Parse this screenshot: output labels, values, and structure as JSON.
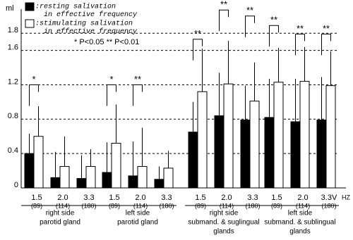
{
  "chart_data": {
    "type": "bar",
    "y_label": "ml",
    "ylim": [
      0,
      2.08
    ],
    "yticks": [
      0,
      0.4,
      0.8,
      1.2,
      1.6,
      1.8
    ],
    "grid": true,
    "categories": [
      "1.5",
      "2.0",
      "3.3",
      "1.5",
      "2.0",
      "3.3",
      "1.5",
      "2.0",
      "3.3",
      "1.5",
      "2.0",
      "3.3V"
    ],
    "category_sublabels": [
      "(89)",
      "(114)",
      "(180)",
      "(89)",
      "(114)",
      "(180)",
      "(89)",
      "(114)",
      "(180)",
      "(89)",
      "(114)",
      "(180)"
    ],
    "x_unit": "HZ",
    "groups": [
      {
        "lines": [
          "right side",
          "parotid gland"
        ]
      },
      {
        "lines": [
          "left side",
          "parotid gland"
        ]
      },
      {
        "lines": [
          "right side",
          "submand. & suglingual",
          "glands"
        ]
      },
      {
        "lines": [
          "left side",
          "submand. & sublingual",
          "glands"
        ]
      }
    ],
    "series": [
      {
        "name": ":resting salivation in effective frequency",
        "color": "#000000",
        "values": [
          0.4,
          0.12,
          0.11,
          0.18,
          0.14,
          0.1,
          0.65,
          0.84,
          0.79,
          0.82,
          0.77,
          0.79
        ],
        "errors": [
          0.23,
          0.3,
          0.27,
          0.35,
          0.4,
          0.15,
          0.35,
          0.5,
          0.4,
          0.45,
          0.5,
          0.5
        ]
      },
      {
        "name": ":stimulating salivation in effective frequency",
        "color": "#ffffff",
        "values": [
          0.6,
          0.25,
          0.25,
          0.52,
          0.25,
          0.23,
          1.12,
          1.21,
          1.01,
          1.23,
          1.24,
          1.19
        ],
        "errors": [
          0.35,
          0.35,
          0.2,
          0.45,
          0.45,
          0.2,
          0.5,
          0.5,
          0.45,
          0.4,
          0.4,
          0.4
        ]
      }
    ],
    "significance": {
      "labels": [
        "*",
        null,
        null,
        "*",
        "**",
        null,
        "**",
        "**",
        "**",
        "**",
        "**",
        "**"
      ],
      "levels": [
        1.2,
        null,
        null,
        1.2,
        1.2,
        null,
        1.73,
        2.07,
        2.0,
        1.89,
        1.79,
        1.79
      ]
    },
    "significance_legend": "*  P<0.05   **  P<0.01"
  }
}
